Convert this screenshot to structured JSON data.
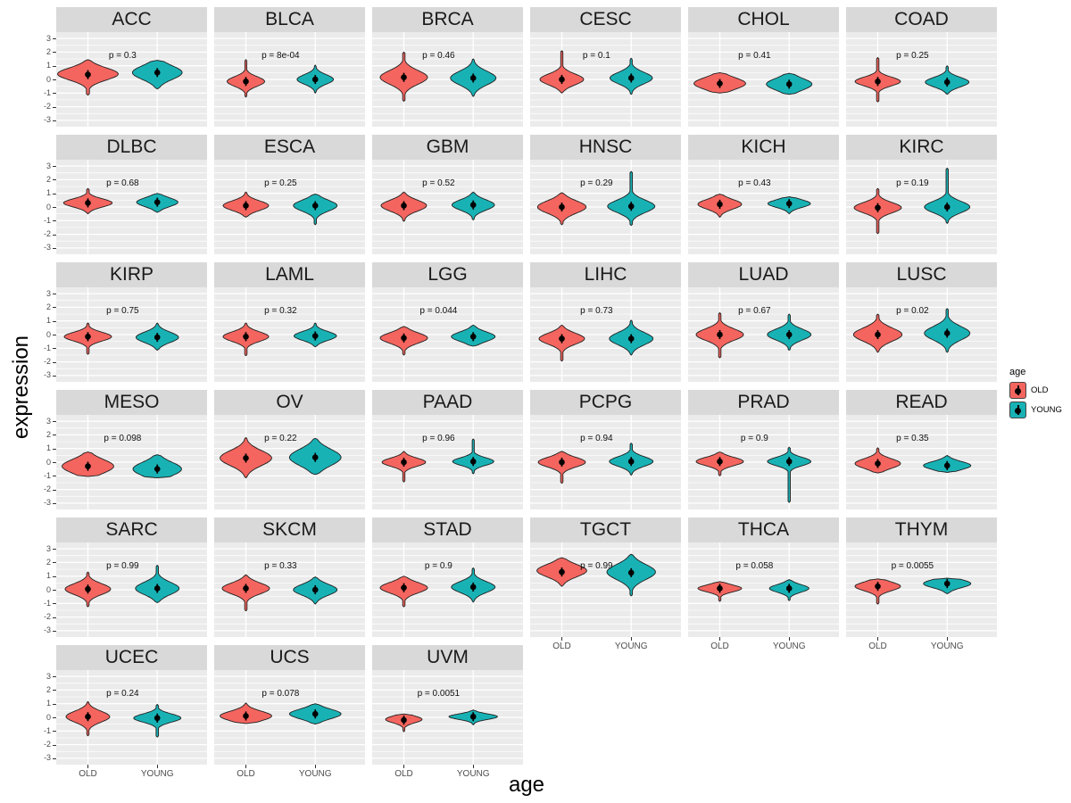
{
  "titles": {
    "y_axis": "expression",
    "x_axis": "age"
  },
  "legend": {
    "title": "age",
    "items": [
      {
        "label": "OLD",
        "color": "#f4655f"
      },
      {
        "label": "YOUNG",
        "color": "#18b2b5"
      }
    ]
  },
  "axes": {
    "y_tick_labels": [
      "3",
      "2",
      "1",
      "0",
      "-1",
      "-2",
      "-3"
    ],
    "x_category_labels": [
      "OLD",
      "YOUNG"
    ]
  },
  "colors": {
    "old_fill": "#f4655f",
    "young_fill": "#18b2b5",
    "violin_outline": "#1f1f1f",
    "panel_background": "#ebebeb",
    "strip_background": "#d9d9d9",
    "gridline": "#ffffff",
    "point": "#000000",
    "tick_text": "#4d4d4d"
  },
  "chart_data": {
    "type": "violin",
    "title": "",
    "xlabel": "age",
    "ylabel": "expression",
    "x_categories": [
      "OLD",
      "YOUNG"
    ],
    "ylim": [
      -3.4,
      3.4
    ],
    "y_major_ticks": [
      3,
      2,
      1,
      0,
      -1,
      -2,
      -3
    ],
    "grid": "major+minor, white on gray panel",
    "legend_position": "right",
    "facets": [
      {
        "name": "ACC",
        "p_label": "p = 0.3",
        "violins": [
          {
            "group": "OLD",
            "center": 0.4,
            "sigma": 0.45,
            "min": -1.15,
            "max": 1.45,
            "width": 1.0,
            "point": 0.35
          },
          {
            "group": "YOUNG",
            "center": 0.5,
            "sigma": 0.5,
            "min": -0.7,
            "max": 1.4,
            "width": 0.82,
            "point": 0.5
          }
        ]
      },
      {
        "name": "BLCA",
        "p_label": "p = 8e-04",
        "violins": [
          {
            "group": "OLD",
            "center": -0.15,
            "sigma": 0.35,
            "min": -1.3,
            "max": 1.45,
            "width": 0.62,
            "point": -0.15
          },
          {
            "group": "YOUNG",
            "center": 0.0,
            "sigma": 0.35,
            "min": -1.0,
            "max": 1.05,
            "width": 0.6,
            "point": 0.0
          }
        ]
      },
      {
        "name": "BRCA",
        "p_label": "p = 0.46",
        "violins": [
          {
            "group": "OLD",
            "center": 0.15,
            "sigma": 0.5,
            "min": -1.6,
            "max": 2.0,
            "width": 0.78,
            "point": 0.15
          },
          {
            "group": "YOUNG",
            "center": 0.1,
            "sigma": 0.5,
            "min": -1.25,
            "max": 1.5,
            "width": 0.75,
            "point": 0.1
          }
        ]
      },
      {
        "name": "CESC",
        "p_label": "p = 0.1",
        "violins": [
          {
            "group": "OLD",
            "center": 0.0,
            "sigma": 0.4,
            "min": -1.0,
            "max": 2.1,
            "width": 0.72,
            "point": 0.0
          },
          {
            "group": "YOUNG",
            "center": 0.1,
            "sigma": 0.42,
            "min": -1.1,
            "max": 1.55,
            "width": 0.7,
            "point": 0.1
          }
        ]
      },
      {
        "name": "CHOL",
        "p_label": "p = 0.41",
        "violins": [
          {
            "group": "OLD",
            "center": -0.3,
            "sigma": 0.42,
            "min": -1.0,
            "max": 0.5,
            "width": 0.85,
            "point": -0.3
          },
          {
            "group": "YOUNG",
            "center": -0.35,
            "sigma": 0.42,
            "min": -1.1,
            "max": 0.45,
            "width": 0.75,
            "point": -0.35
          }
        ]
      },
      {
        "name": "COAD",
        "p_label": "p = 0.25",
        "violins": [
          {
            "group": "OLD",
            "center": -0.15,
            "sigma": 0.32,
            "min": -1.65,
            "max": 1.6,
            "width": 0.75,
            "point": -0.15
          },
          {
            "group": "YOUNG",
            "center": -0.2,
            "sigma": 0.35,
            "min": -1.1,
            "max": 1.0,
            "width": 0.72,
            "point": -0.2
          }
        ]
      },
      {
        "name": "DLBC",
        "p_label": "p = 0.68",
        "violins": [
          {
            "group": "OLD",
            "center": 0.3,
            "sigma": 0.3,
            "min": -0.5,
            "max": 1.35,
            "width": 0.8,
            "point": 0.3
          },
          {
            "group": "YOUNG",
            "center": 0.35,
            "sigma": 0.32,
            "min": -0.4,
            "max": 1.0,
            "width": 0.68,
            "point": 0.35
          }
        ]
      },
      {
        "name": "ESCA",
        "p_label": "p = 0.25",
        "violins": [
          {
            "group": "OLD",
            "center": 0.1,
            "sigma": 0.35,
            "min": -0.75,
            "max": 1.1,
            "width": 0.75,
            "point": 0.1
          },
          {
            "group": "YOUNG",
            "center": 0.1,
            "sigma": 0.4,
            "min": -1.3,
            "max": 0.95,
            "width": 0.72,
            "point": 0.1
          }
        ]
      },
      {
        "name": "GBM",
        "p_label": "p = 0.52",
        "violins": [
          {
            "group": "OLD",
            "center": 0.1,
            "sigma": 0.4,
            "min": -1.05,
            "max": 1.1,
            "width": 0.75,
            "point": 0.1
          },
          {
            "group": "YOUNG",
            "center": 0.15,
            "sigma": 0.38,
            "min": -0.95,
            "max": 1.1,
            "width": 0.7,
            "point": 0.15
          }
        ]
      },
      {
        "name": "HNSC",
        "p_label": "p = 0.29",
        "violins": [
          {
            "group": "OLD",
            "center": 0.0,
            "sigma": 0.45,
            "min": -1.3,
            "max": 1.05,
            "width": 0.8,
            "point": 0.0
          },
          {
            "group": "YOUNG",
            "center": 0.05,
            "sigma": 0.45,
            "min": -1.35,
            "max": 2.6,
            "width": 0.78,
            "point": 0.05
          }
        ]
      },
      {
        "name": "KICH",
        "p_label": "p = 0.43",
        "violins": [
          {
            "group": "OLD",
            "center": 0.2,
            "sigma": 0.35,
            "min": -0.75,
            "max": 0.95,
            "width": 0.72,
            "point": 0.2
          },
          {
            "group": "YOUNG",
            "center": 0.25,
            "sigma": 0.28,
            "min": -0.5,
            "max": 0.75,
            "width": 0.7,
            "point": 0.25
          }
        ]
      },
      {
        "name": "KIRC",
        "p_label": "p = 0.19",
        "violins": [
          {
            "group": "OLD",
            "center": -0.05,
            "sigma": 0.38,
            "min": -1.95,
            "max": 1.35,
            "width": 0.78,
            "point": -0.05
          },
          {
            "group": "YOUNG",
            "center": 0.0,
            "sigma": 0.42,
            "min": -1.2,
            "max": 2.85,
            "width": 0.75,
            "point": 0.0
          }
        ]
      },
      {
        "name": "KIRP",
        "p_label": "p = 0.75",
        "violins": [
          {
            "group": "OLD",
            "center": -0.15,
            "sigma": 0.32,
            "min": -1.45,
            "max": 0.85,
            "width": 0.78,
            "point": -0.15
          },
          {
            "group": "YOUNG",
            "center": -0.2,
            "sigma": 0.38,
            "min": -1.15,
            "max": 0.85,
            "width": 0.7,
            "point": -0.2
          }
        ]
      },
      {
        "name": "LAML",
        "p_label": "p = 0.32",
        "violins": [
          {
            "group": "OLD",
            "center": -0.15,
            "sigma": 0.35,
            "min": -1.55,
            "max": 0.85,
            "width": 0.75,
            "point": -0.15
          },
          {
            "group": "YOUNG",
            "center": -0.1,
            "sigma": 0.32,
            "min": -0.9,
            "max": 0.85,
            "width": 0.7,
            "point": -0.1
          }
        ]
      },
      {
        "name": "LGG",
        "p_label": "p = 0.044",
        "violins": [
          {
            "group": "OLD",
            "center": -0.25,
            "sigma": 0.38,
            "min": -1.5,
            "max": 0.6,
            "width": 0.78,
            "point": -0.25
          },
          {
            "group": "YOUNG",
            "center": -0.15,
            "sigma": 0.35,
            "min": -0.85,
            "max": 0.7,
            "width": 0.72,
            "point": -0.15
          }
        ]
      },
      {
        "name": "LIHC",
        "p_label": "p = 0.73",
        "violins": [
          {
            "group": "OLD",
            "center": -0.3,
            "sigma": 0.4,
            "min": -1.95,
            "max": 0.7,
            "width": 0.75,
            "point": -0.3
          },
          {
            "group": "YOUNG",
            "center": -0.3,
            "sigma": 0.45,
            "min": -1.5,
            "max": 1.05,
            "width": 0.72,
            "point": -0.3
          }
        ]
      },
      {
        "name": "LUAD",
        "p_label": "p = 0.67",
        "violins": [
          {
            "group": "OLD",
            "center": 0.0,
            "sigma": 0.42,
            "min": -1.7,
            "max": 1.6,
            "width": 0.78,
            "point": 0.0
          },
          {
            "group": "YOUNG",
            "center": 0.0,
            "sigma": 0.4,
            "min": -1.15,
            "max": 1.5,
            "width": 0.72,
            "point": 0.0
          }
        ]
      },
      {
        "name": "LUSC",
        "p_label": "p = 0.02",
        "violins": [
          {
            "group": "OLD",
            "center": 0.0,
            "sigma": 0.48,
            "min": -1.3,
            "max": 1.5,
            "width": 0.8,
            "point": 0.0
          },
          {
            "group": "YOUNG",
            "center": 0.1,
            "sigma": 0.5,
            "min": -1.3,
            "max": 1.9,
            "width": 0.75,
            "point": 0.1
          }
        ]
      },
      {
        "name": "MESO",
        "p_label": "p = 0.098",
        "violins": [
          {
            "group": "OLD",
            "center": -0.3,
            "sigma": 0.5,
            "min": -1.05,
            "max": 0.75,
            "width": 0.85,
            "point": -0.3
          },
          {
            "group": "YOUNG",
            "center": -0.5,
            "sigma": 0.5,
            "min": -1.15,
            "max": 0.55,
            "width": 0.8,
            "point": -0.5
          }
        ]
      },
      {
        "name": "OV",
        "p_label": "p = 0.22",
        "violins": [
          {
            "group": "OLD",
            "center": 0.3,
            "sigma": 0.55,
            "min": -1.15,
            "max": 1.8,
            "width": 0.85,
            "point": 0.3
          },
          {
            "group": "YOUNG",
            "center": 0.35,
            "sigma": 0.6,
            "min": -0.9,
            "max": 1.75,
            "width": 0.85,
            "point": 0.35
          }
        ]
      },
      {
        "name": "PAAD",
        "p_label": "p = 0.96",
        "violins": [
          {
            "group": "OLD",
            "center": 0.0,
            "sigma": 0.3,
            "min": -1.45,
            "max": 0.8,
            "width": 0.72,
            "point": 0.0
          },
          {
            "group": "YOUNG",
            "center": 0.05,
            "sigma": 0.28,
            "min": -0.85,
            "max": 1.7,
            "width": 0.68,
            "point": 0.05
          }
        ]
      },
      {
        "name": "PCPG",
        "p_label": "p = 0.94",
        "violins": [
          {
            "group": "OLD",
            "center": 0.0,
            "sigma": 0.35,
            "min": -1.55,
            "max": 0.8,
            "width": 0.78,
            "point": 0.0
          },
          {
            "group": "YOUNG",
            "center": 0.05,
            "sigma": 0.35,
            "min": -0.95,
            "max": 1.4,
            "width": 0.72,
            "point": 0.05
          }
        ]
      },
      {
        "name": "PRAD",
        "p_label": "p = 0.9",
        "violins": [
          {
            "group": "OLD",
            "center": 0.05,
            "sigma": 0.3,
            "min": -1.0,
            "max": 0.75,
            "width": 0.78,
            "point": 0.05
          },
          {
            "group": "YOUNG",
            "center": 0.05,
            "sigma": 0.3,
            "min": -2.95,
            "max": 1.1,
            "width": 0.72,
            "point": 0.05
          }
        ]
      },
      {
        "name": "READ",
        "p_label": "p = 0.35",
        "violins": [
          {
            "group": "OLD",
            "center": -0.1,
            "sigma": 0.35,
            "min": -0.8,
            "max": 1.05,
            "width": 0.75,
            "point": -0.1
          },
          {
            "group": "YOUNG",
            "center": -0.25,
            "sigma": 0.3,
            "min": -0.75,
            "max": 0.5,
            "width": 0.78,
            "point": -0.25
          }
        ]
      },
      {
        "name": "SARC",
        "p_label": "p = 0.99",
        "violins": [
          {
            "group": "OLD",
            "center": 0.05,
            "sigma": 0.4,
            "min": -1.25,
            "max": 1.3,
            "width": 0.75,
            "point": 0.05
          },
          {
            "group": "YOUNG",
            "center": 0.1,
            "sigma": 0.45,
            "min": -0.95,
            "max": 1.8,
            "width": 0.72,
            "point": 0.1
          }
        ]
      },
      {
        "name": "SKCM",
        "p_label": "p = 0.33",
        "violins": [
          {
            "group": "OLD",
            "center": 0.1,
            "sigma": 0.4,
            "min": -1.55,
            "max": 1.1,
            "width": 0.78,
            "point": 0.1
          },
          {
            "group": "YOUNG",
            "center": 0.0,
            "sigma": 0.4,
            "min": -1.05,
            "max": 0.95,
            "width": 0.72,
            "point": 0.0
          }
        ]
      },
      {
        "name": "STAD",
        "p_label": "p = 0.9",
        "violins": [
          {
            "group": "OLD",
            "center": 0.15,
            "sigma": 0.38,
            "min": -1.25,
            "max": 1.0,
            "width": 0.78,
            "point": 0.15
          },
          {
            "group": "YOUNG",
            "center": 0.2,
            "sigma": 0.4,
            "min": -0.9,
            "max": 1.6,
            "width": 0.72,
            "point": 0.2
          }
        ]
      },
      {
        "name": "TGCT",
        "p_label": "p = 0.99",
        "violins": [
          {
            "group": "OLD",
            "center": 1.4,
            "sigma": 0.45,
            "min": 0.25,
            "max": 2.35,
            "width": 0.82,
            "point": 1.3
          },
          {
            "group": "YOUNG",
            "center": 1.3,
            "sigma": 0.55,
            "min": -0.45,
            "max": 2.6,
            "width": 0.8,
            "point": 1.25
          }
        ]
      },
      {
        "name": "THCA",
        "p_label": "p = 0.058",
        "violins": [
          {
            "group": "OLD",
            "center": 0.1,
            "sigma": 0.25,
            "min": -0.85,
            "max": 0.6,
            "width": 0.72,
            "point": 0.1
          },
          {
            "group": "YOUNG",
            "center": 0.1,
            "sigma": 0.28,
            "min": -0.8,
            "max": 0.75,
            "width": 0.65,
            "point": 0.1
          }
        ]
      },
      {
        "name": "THYM",
        "p_label": "p = 0.0055",
        "violins": [
          {
            "group": "OLD",
            "center": 0.25,
            "sigma": 0.32,
            "min": -1.05,
            "max": 0.8,
            "width": 0.75,
            "point": 0.25
          },
          {
            "group": "YOUNG",
            "center": 0.45,
            "sigma": 0.3,
            "min": -0.3,
            "max": 0.85,
            "width": 0.78,
            "point": 0.45
          }
        ]
      },
      {
        "name": "UCEC",
        "p_label": "p = 0.24",
        "violins": [
          {
            "group": "OLD",
            "center": 0.05,
            "sigma": 0.4,
            "min": -1.35,
            "max": 1.15,
            "width": 0.72,
            "point": 0.05
          },
          {
            "group": "YOUNG",
            "center": -0.05,
            "sigma": 0.3,
            "min": -1.45,
            "max": 0.95,
            "width": 0.78,
            "point": -0.05
          }
        ]
      },
      {
        "name": "UCS",
        "p_label": "p = 0.078",
        "violins": [
          {
            "group": "OLD",
            "center": 0.1,
            "sigma": 0.35,
            "min": -0.45,
            "max": 1.05,
            "width": 0.85,
            "point": 0.1
          },
          {
            "group": "YOUNG",
            "center": 0.25,
            "sigma": 0.35,
            "min": -0.5,
            "max": 1.0,
            "width": 0.85,
            "point": 0.25
          }
        ]
      },
      {
        "name": "UVM",
        "p_label": "p = 0.0051",
        "violins": [
          {
            "group": "OLD",
            "center": -0.15,
            "sigma": 0.25,
            "min": -1.05,
            "max": 0.25,
            "width": 0.6,
            "point": -0.2
          },
          {
            "group": "YOUNG",
            "center": 0.05,
            "sigma": 0.2,
            "min": -0.55,
            "max": 0.55,
            "width": 0.8,
            "point": 0.05
          }
        ]
      }
    ]
  }
}
